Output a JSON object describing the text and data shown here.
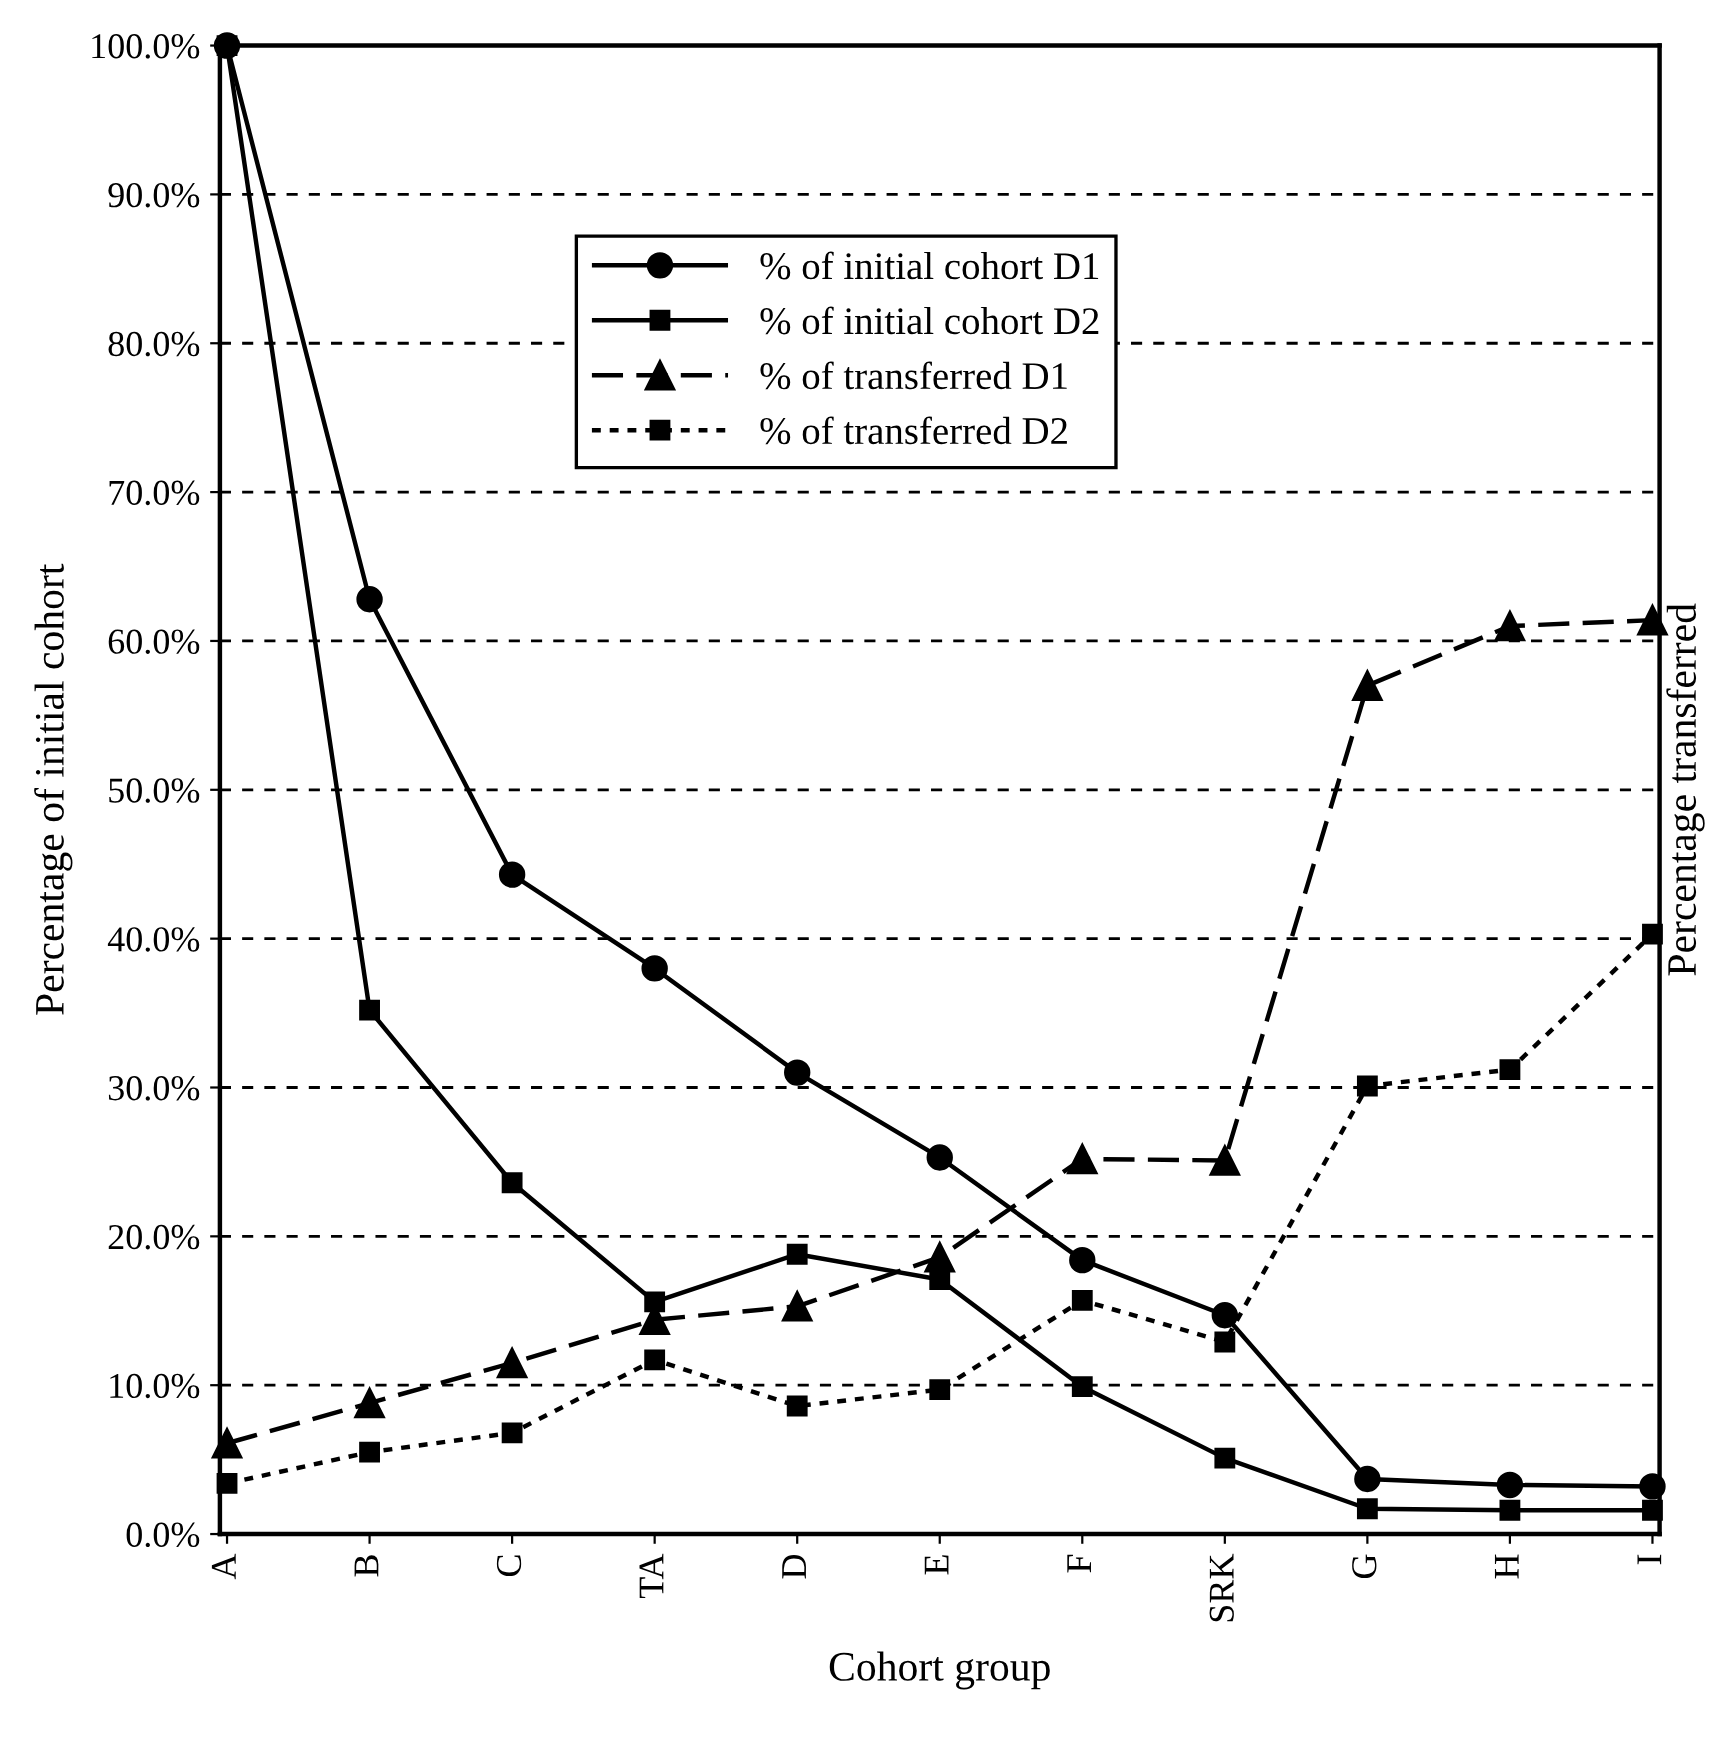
{
  "chart_data": {
    "type": "line",
    "xlabel": "Cohort group",
    "ylabel": "Percentage of initial cohort",
    "y2label": "Percentage transferred",
    "categories": [
      "A",
      "B",
      "C",
      "TA",
      "D",
      "E",
      "F",
      "SRK",
      "G",
      "H",
      "I"
    ],
    "ylim": [
      0,
      100
    ],
    "yticks": [
      {
        "value": 0,
        "label": "0.0%"
      },
      {
        "value": 10,
        "label": "10.0%"
      },
      {
        "value": 20,
        "label": "20.0%"
      },
      {
        "value": 30,
        "label": "30.0%"
      },
      {
        "value": 40,
        "label": "40.0%"
      },
      {
        "value": 50,
        "label": "50.0%"
      },
      {
        "value": 60,
        "label": "60.0%"
      },
      {
        "value": 70,
        "label": "70.0%"
      },
      {
        "value": 80,
        "label": "80.0%"
      },
      {
        "value": 90,
        "label": "90.0%"
      },
      {
        "value": 100,
        "label": "100.0%"
      }
    ],
    "grid": "y",
    "legend": "top",
    "series": [
      {
        "name": "% of initial cohort D1",
        "color": "#000000",
        "marker": "circle",
        "line_style": "solid",
        "values": [
          100,
          62.8,
          44.3,
          38.0,
          31.0,
          25.3,
          18.4,
          14.7,
          3.7,
          3.3,
          3.2
        ]
      },
      {
        "name": "% of initial cohort D2",
        "color": "#000000",
        "marker": "square",
        "line_style": "solid",
        "values": [
          100,
          35.2,
          23.6,
          15.6,
          18.8,
          17.1,
          9.9,
          5.1,
          1.7,
          1.6,
          1.6
        ]
      },
      {
        "name": "% of transferred D1",
        "color": "#000000",
        "marker": "triangle",
        "line_style": "dashed",
        "values": [
          6.1,
          8.8,
          11.5,
          14.4,
          15.3,
          18.6,
          25.2,
          25.1,
          57.0,
          61.0,
          61.4
        ]
      },
      {
        "name": "% of transferred D2",
        "color": "#000000",
        "marker": "square",
        "line_style": "dotted",
        "values": [
          3.4,
          5.5,
          6.8,
          11.7,
          8.6,
          9.7,
          15.7,
          12.9,
          30.1,
          31.2,
          40.3
        ]
      }
    ]
  }
}
